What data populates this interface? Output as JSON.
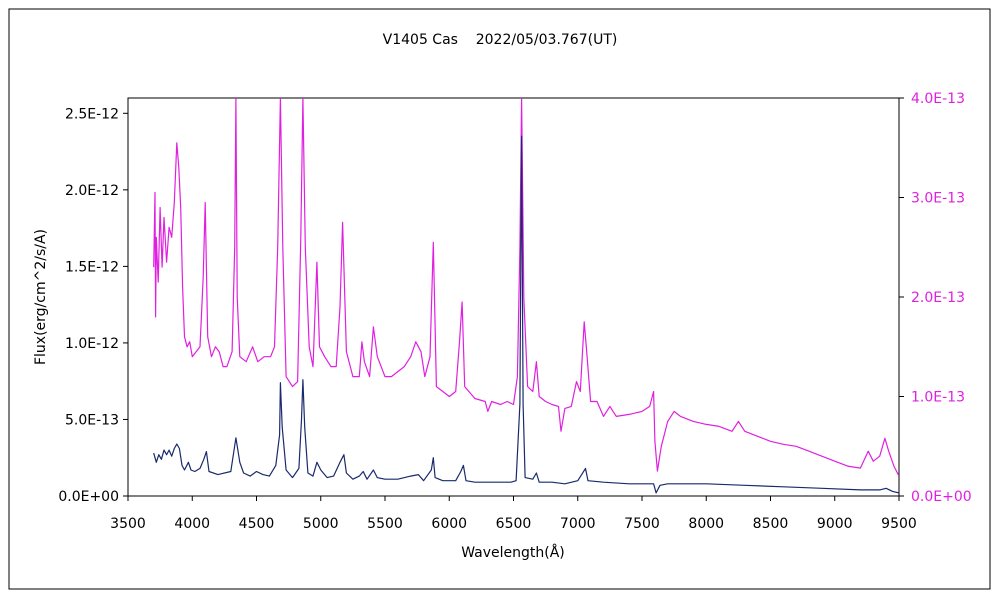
{
  "chart_data": {
    "type": "line",
    "title": "V1405 Cas    2022/05/03.767(UT)",
    "xlabel": "Wavelength(Å)",
    "ylabel": "Flux(erg/cm^2/s/A)",
    "xlim": [
      3500,
      9500
    ],
    "ylim_left": [
      0,
      2.6e-12
    ],
    "ylim_right": [
      0,
      4e-13
    ],
    "x_ticks": [
      "3500",
      "4000",
      "4500",
      "5000",
      "5500",
      "6000",
      "6500",
      "7000",
      "7500",
      "8000",
      "8500",
      "9000",
      "9500"
    ],
    "y_left_ticks": [
      "0.0E+00",
      "5.0E-13",
      "1.0E-12",
      "1.5E-12",
      "2.0E-12",
      "2.5E-12"
    ],
    "y_right_ticks": [
      "0.0E+00",
      "1.0E-13",
      "2.0E-13",
      "3.0E-13",
      "4.0E-13"
    ],
    "grid": false,
    "colors": {
      "primary": "#1a2a6c",
      "secondary": "#e020e0",
      "axis": "#000000",
      "right_axis_text": "#e020e0"
    },
    "series": [
      {
        "axis": "left",
        "color": "#1a2a6c",
        "points": [
          [
            3700,
            2.8e-13
          ],
          [
            3720,
            2.2e-13
          ],
          [
            3740,
            2.7e-13
          ],
          [
            3760,
            2.4e-13
          ],
          [
            3780,
            3e-13
          ],
          [
            3800,
            2.7e-13
          ],
          [
            3820,
            3e-13
          ],
          [
            3840,
            2.6e-13
          ],
          [
            3860,
            3.1e-13
          ],
          [
            3880,
            3.4e-13
          ],
          [
            3900,
            3.1e-13
          ],
          [
            3920,
            2e-13
          ],
          [
            3940,
            1.7e-13
          ],
          [
            3970,
            2.2e-13
          ],
          [
            3990,
            1.7e-13
          ],
          [
            4020,
            1.6e-13
          ],
          [
            4060,
            1.8e-13
          ],
          [
            4090,
            2.4e-13
          ],
          [
            4110,
            2.9e-13
          ],
          [
            4130,
            1.6e-13
          ],
          [
            4200,
            1.4e-13
          ],
          [
            4300,
            1.6e-13
          ],
          [
            4340,
            3.8e-13
          ],
          [
            4370,
            2.2e-13
          ],
          [
            4400,
            1.5e-13
          ],
          [
            4450,
            1.3e-13
          ],
          [
            4500,
            1.6e-13
          ],
          [
            4550,
            1.4e-13
          ],
          [
            4600,
            1.3e-13
          ],
          [
            4650,
            2e-13
          ],
          [
            4680,
            4e-13
          ],
          [
            4686,
            7.4e-13
          ],
          [
            4700,
            4.5e-13
          ],
          [
            4730,
            1.7e-13
          ],
          [
            4780,
            1.2e-13
          ],
          [
            4830,
            1.8e-13
          ],
          [
            4850,
            5e-13
          ],
          [
            4861,
            7.6e-13
          ],
          [
            4875,
            4.5e-13
          ],
          [
            4900,
            1.5e-13
          ],
          [
            4940,
            1.3e-13
          ],
          [
            4970,
            2.2e-13
          ],
          [
            5000,
            1.7e-13
          ],
          [
            5050,
            1.2e-13
          ],
          [
            5100,
            1.3e-13
          ],
          [
            5150,
            2.2e-13
          ],
          [
            5180,
            2.7e-13
          ],
          [
            5200,
            1.5e-13
          ],
          [
            5250,
            1.1e-13
          ],
          [
            5300,
            1.3e-13
          ],
          [
            5330,
            1.6e-13
          ],
          [
            5360,
            1.1e-13
          ],
          [
            5410,
            1.7e-13
          ],
          [
            5440,
            1.2e-13
          ],
          [
            5500,
            1.1e-13
          ],
          [
            5600,
            1.1e-13
          ],
          [
            5700,
            1.3e-13
          ],
          [
            5760,
            1.4e-13
          ],
          [
            5800,
            1e-13
          ],
          [
            5860,
            1.7e-13
          ],
          [
            5876,
            2.5e-13
          ],
          [
            5890,
            1.2e-13
          ],
          [
            5950,
            1e-13
          ],
          [
            6050,
            1e-13
          ],
          [
            6090,
            1.6e-13
          ],
          [
            6110,
            2e-13
          ],
          [
            6130,
            1e-13
          ],
          [
            6200,
            9e-14
          ],
          [
            6300,
            9e-14
          ],
          [
            6400,
            9e-14
          ],
          [
            6480,
            9e-14
          ],
          [
            6520,
            1e-13
          ],
          [
            6550,
            6e-13
          ],
          [
            6563,
            2.35e-12
          ],
          [
            6575,
            6e-13
          ],
          [
            6590,
            1.2e-13
          ],
          [
            6650,
            1.1e-13
          ],
          [
            6678,
            1.5e-13
          ],
          [
            6700,
            9e-14
          ],
          [
            6800,
            9e-14
          ],
          [
            6900,
            8e-14
          ],
          [
            7000,
            1e-13
          ],
          [
            7060,
            1.8e-13
          ],
          [
            7080,
            1e-13
          ],
          [
            7200,
            9e-14
          ],
          [
            7400,
            8e-14
          ],
          [
            7590,
            8e-14
          ],
          [
            7610,
            2e-14
          ],
          [
            7640,
            7e-14
          ],
          [
            7700,
            8e-14
          ],
          [
            8000,
            8e-14
          ],
          [
            8300,
            7e-14
          ],
          [
            8600,
            6e-14
          ],
          [
            8900,
            5e-14
          ],
          [
            9200,
            4e-14
          ],
          [
            9350,
            4e-14
          ],
          [
            9400,
            5e-14
          ],
          [
            9450,
            3e-14
          ],
          [
            9500,
            2e-14
          ]
        ]
      },
      {
        "axis": "right",
        "color": "#e020e0",
        "points": [
          [
            3700,
            2.3e-13
          ],
          [
            3710,
            3.05e-13
          ],
          [
            3715,
            1.8e-13
          ],
          [
            3720,
            2.6e-13
          ],
          [
            3735,
            2.15e-13
          ],
          [
            3750,
            2.9e-13
          ],
          [
            3765,
            2.3e-13
          ],
          [
            3780,
            2.8e-13
          ],
          [
            3800,
            2.35e-13
          ],
          [
            3820,
            2.7e-13
          ],
          [
            3840,
            2.6e-13
          ],
          [
            3860,
            2.95e-13
          ],
          [
            3880,
            3.55e-13
          ],
          [
            3895,
            3.3e-13
          ],
          [
            3910,
            2.9e-13
          ],
          [
            3925,
            2.1e-13
          ],
          [
            3940,
            1.6e-13
          ],
          [
            3960,
            1.5e-13
          ],
          [
            3980,
            1.55e-13
          ],
          [
            4000,
            1.4e-13
          ],
          [
            4030,
            1.45e-13
          ],
          [
            4060,
            1.5e-13
          ],
          [
            4085,
            2.2e-13
          ],
          [
            4101,
            2.95e-13
          ],
          [
            4120,
            1.6e-13
          ],
          [
            4150,
            1.4e-13
          ],
          [
            4180,
            1.5e-13
          ],
          [
            4210,
            1.45e-13
          ],
          [
            4240,
            1.3e-13
          ],
          [
            4270,
            1.3e-13
          ],
          [
            4310,
            1.45e-13
          ],
          [
            4330,
            2.5e-13
          ],
          [
            4340,
            4e-13
          ],
          [
            4350,
            2e-13
          ],
          [
            4370,
            1.4e-13
          ],
          [
            4420,
            1.35e-13
          ],
          [
            4470,
            1.5e-13
          ],
          [
            4510,
            1.35e-13
          ],
          [
            4560,
            1.4e-13
          ],
          [
            4610,
            1.4e-13
          ],
          [
            4640,
            1.5e-13
          ],
          [
            4665,
            2.5e-13
          ],
          [
            4686,
            4e-13
          ],
          [
            4705,
            2.5e-13
          ],
          [
            4730,
            1.2e-13
          ],
          [
            4780,
            1.1e-13
          ],
          [
            4820,
            1.15e-13
          ],
          [
            4845,
            2.6e-13
          ],
          [
            4861,
            4e-13
          ],
          [
            4880,
            2.5e-13
          ],
          [
            4910,
            1.5e-13
          ],
          [
            4940,
            1.3e-13
          ],
          [
            4970,
            2.35e-13
          ],
          [
            4990,
            1.5e-13
          ],
          [
            5030,
            1.4e-13
          ],
          [
            5080,
            1.3e-13
          ],
          [
            5120,
            1.3e-13
          ],
          [
            5150,
            1.9e-13
          ],
          [
            5170,
            2.75e-13
          ],
          [
            5200,
            1.45e-13
          ],
          [
            5250,
            1.2e-13
          ],
          [
            5300,
            1.2e-13
          ],
          [
            5320,
            1.55e-13
          ],
          [
            5340,
            1.35e-13
          ],
          [
            5380,
            1.2e-13
          ],
          [
            5410,
            1.7e-13
          ],
          [
            5440,
            1.4e-13
          ],
          [
            5500,
            1.2e-13
          ],
          [
            5550,
            1.2e-13
          ],
          [
            5600,
            1.25e-13
          ],
          [
            5650,
            1.3e-13
          ],
          [
            5700,
            1.4e-13
          ],
          [
            5740,
            1.55e-13
          ],
          [
            5780,
            1.45e-13
          ],
          [
            5810,
            1.2e-13
          ],
          [
            5850,
            1.4e-13
          ],
          [
            5876,
            2.55e-13
          ],
          [
            5900,
            1.1e-13
          ],
          [
            5950,
            1.05e-13
          ],
          [
            6000,
            1e-13
          ],
          [
            6050,
            1.05e-13
          ],
          [
            6080,
            1.55e-13
          ],
          [
            6100,
            1.95e-13
          ],
          [
            6120,
            1.1e-13
          ],
          [
            6200,
            9.8e-14
          ],
          [
            6280,
            9.5e-14
          ],
          [
            6300,
            8.5e-14
          ],
          [
            6330,
            9.5e-14
          ],
          [
            6400,
            9.2e-14
          ],
          [
            6450,
            9.5e-14
          ],
          [
            6500,
            9.2e-14
          ],
          [
            6530,
            1.2e-13
          ],
          [
            6550,
            2.5e-13
          ],
          [
            6563,
            4e-13
          ],
          [
            6580,
            2e-13
          ],
          [
            6610,
            1.1e-13
          ],
          [
            6650,
            1.05e-13
          ],
          [
            6678,
            1.35e-13
          ],
          [
            6700,
            1e-13
          ],
          [
            6750,
            9.5e-14
          ],
          [
            6800,
            9.2e-14
          ],
          [
            6850,
            9e-14
          ],
          [
            6870,
            6.5e-14
          ],
          [
            6900,
            8.8e-14
          ],
          [
            6950,
            9e-14
          ],
          [
            6990,
            1.15e-13
          ],
          [
            7020,
            1.05e-13
          ],
          [
            7050,
            1.75e-13
          ],
          [
            7070,
            1.45e-13
          ],
          [
            7100,
            9.5e-14
          ],
          [
            7150,
            9.5e-14
          ],
          [
            7200,
            8e-14
          ],
          [
            7250,
            9e-14
          ],
          [
            7300,
            8e-14
          ],
          [
            7400,
            8.2e-14
          ],
          [
            7500,
            8.5e-14
          ],
          [
            7560,
            9e-14
          ],
          [
            7590,
            1.05e-13
          ],
          [
            7600,
            5.5e-14
          ],
          [
            7620,
            2.5e-14
          ],
          [
            7650,
            5e-14
          ],
          [
            7700,
            7.5e-14
          ],
          [
            7750,
            8.5e-14
          ],
          [
            7800,
            8e-14
          ],
          [
            7900,
            7.5e-14
          ],
          [
            8000,
            7.2e-14
          ],
          [
            8100,
            7e-14
          ],
          [
            8200,
            6.5e-14
          ],
          [
            8250,
            7.5e-14
          ],
          [
            8300,
            6.5e-14
          ],
          [
            8400,
            6e-14
          ],
          [
            8500,
            5.5e-14
          ],
          [
            8600,
            5.2e-14
          ],
          [
            8700,
            5e-14
          ],
          [
            8800,
            4.5e-14
          ],
          [
            8900,
            4e-14
          ],
          [
            9000,
            3.5e-14
          ],
          [
            9100,
            3e-14
          ],
          [
            9200,
            2.8e-14
          ],
          [
            9260,
            4.5e-14
          ],
          [
            9300,
            3.5e-14
          ],
          [
            9350,
            4e-14
          ],
          [
            9390,
            5.8e-14
          ],
          [
            9420,
            4.5e-14
          ],
          [
            9460,
            3e-14
          ],
          [
            9500,
            2e-14
          ]
        ]
      }
    ]
  }
}
